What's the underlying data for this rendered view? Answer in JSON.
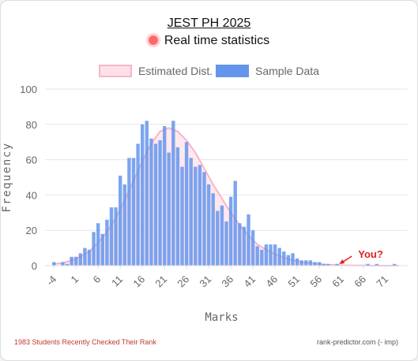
{
  "header": {
    "title": "JEST PH 2025",
    "live_label": "Real time statistics"
  },
  "legend": {
    "estimated_label": "Estimated Dist.",
    "sample_label": "Sample Data"
  },
  "colors": {
    "bar": "#6495ed",
    "curve_fill": "#ffe0e8",
    "curve_line": "#f4b6c8",
    "marker": "#e02020",
    "live_dot": "#ff6b6b"
  },
  "chart_data": {
    "type": "bar",
    "xlabel": "Marks",
    "ylabel": "Frequency",
    "ylim": [
      0,
      100
    ],
    "yticks": [
      0,
      20,
      40,
      60,
      80,
      100
    ],
    "xlim": [
      -6,
      76
    ],
    "xticks": [
      -4,
      1,
      6,
      11,
      16,
      21,
      26,
      31,
      36,
      41,
      46,
      51,
      56,
      61,
      66,
      71
    ],
    "grid": true,
    "legend_position": "top",
    "series": [
      {
        "name": "Sample Data",
        "x": [
          -4,
          -2,
          -1,
          0,
          1,
          2,
          3,
          4,
          5,
          6,
          7,
          8,
          9,
          10,
          11,
          12,
          13,
          14,
          15,
          16,
          17,
          18,
          19,
          20,
          21,
          22,
          23,
          24,
          25,
          26,
          27,
          28,
          29,
          30,
          31,
          32,
          33,
          34,
          35,
          36,
          37,
          38,
          39,
          40,
          41,
          42,
          43,
          44,
          45,
          46,
          47,
          48,
          49,
          50,
          51,
          52,
          53,
          54,
          55,
          56,
          57,
          58,
          60,
          67,
          69,
          73
        ],
        "values": [
          2,
          2,
          1,
          5,
          5,
          7,
          10,
          9,
          19,
          24,
          18,
          26,
          33,
          33,
          51,
          46,
          61,
          61,
          69,
          80,
          82,
          72,
          69,
          71,
          79,
          64,
          82,
          67,
          56,
          70,
          61,
          56,
          57,
          53,
          46,
          41,
          31,
          34,
          25,
          39,
          48,
          24,
          22,
          29,
          20,
          11,
          9,
          12,
          12,
          12,
          10,
          8,
          6,
          7,
          4,
          3,
          3,
          3,
          2,
          2,
          1,
          1,
          1,
          1,
          1,
          1
        ]
      },
      {
        "name": "Estimated Dist.",
        "type": "line",
        "x": [
          -4,
          -2,
          0,
          2,
          4,
          6,
          8,
          10,
          12,
          14,
          16,
          18,
          20,
          22,
          24,
          26,
          28,
          30,
          32,
          34,
          36,
          38,
          40,
          42,
          44,
          46,
          48,
          50,
          52,
          54,
          56,
          58,
          60,
          62,
          64,
          66,
          68,
          70,
          72,
          74
        ],
        "values": [
          1,
          1.5,
          3,
          5,
          8,
          13,
          19,
          27,
          37,
          48,
          59,
          69,
          76,
          78,
          76,
          71,
          64,
          55,
          46,
          38,
          30,
          23,
          17,
          12,
          9,
          6.5,
          4.5,
          3,
          2,
          1.3,
          0.9,
          0.5,
          0.3,
          0.2,
          0.1,
          0.1,
          0,
          0,
          0,
          0
        ]
      }
    ],
    "annotations": [
      {
        "text": "You?",
        "x": 60.5,
        "y": 0
      }
    ]
  },
  "footer": {
    "left": "1983 Students Recently Checked Their Rank",
    "right": "rank-predictor.com (- imp)"
  }
}
